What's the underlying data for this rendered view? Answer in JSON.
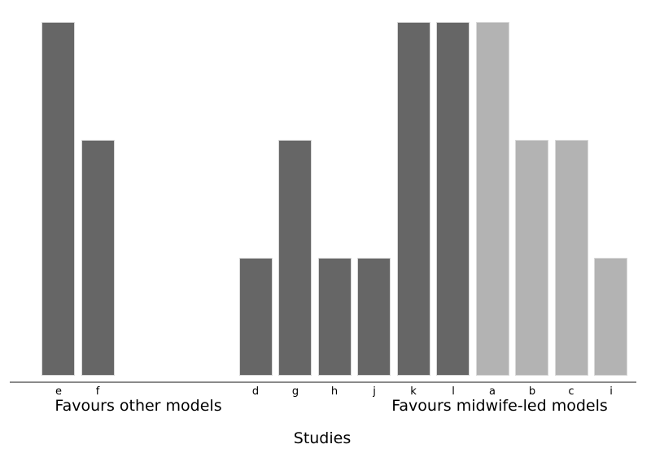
{
  "figure": {
    "background": "#ffffff",
    "axis_color": "#8a8a8a",
    "text_color": "#000000"
  },
  "chart_data": {
    "type": "bar",
    "title": "",
    "xlabel": "Studies",
    "ylabel": "",
    "ylim": [
      0,
      3
    ],
    "grid": false,
    "legend": null,
    "y_axis_shown": false,
    "annotations": {
      "left_group_label": "Favours other models",
      "right_group_label": "Favours midwife-led models"
    },
    "palette": {
      "dark": "#666666",
      "light": "#b3b3b3",
      "bar_border": "#d9d9d9"
    },
    "categories": [
      "e",
      "f",
      "d",
      "g",
      "h",
      "j",
      "k",
      "l",
      "a",
      "b",
      "c",
      "i"
    ],
    "values": [
      3,
      2,
      1,
      2,
      1,
      1,
      3,
      3,
      3,
      2,
      2,
      1
    ],
    "bars": [
      {
        "label": "e",
        "value": 3,
        "slot": 0,
        "shade": "dark"
      },
      {
        "label": "f",
        "value": 2,
        "slot": 1,
        "shade": "dark"
      },
      {
        "label": "d",
        "value": 1,
        "slot": 5,
        "shade": "dark"
      },
      {
        "label": "g",
        "value": 2,
        "slot": 6,
        "shade": "dark"
      },
      {
        "label": "h",
        "value": 1,
        "slot": 7,
        "shade": "dark"
      },
      {
        "label": "j",
        "value": 1,
        "slot": 8,
        "shade": "dark"
      },
      {
        "label": "k",
        "value": 3,
        "slot": 9,
        "shade": "dark"
      },
      {
        "label": "l",
        "value": 3,
        "slot": 10,
        "shade": "dark"
      },
      {
        "label": "a",
        "value": 3,
        "slot": 11,
        "shade": "light"
      },
      {
        "label": "b",
        "value": 2,
        "slot": 12,
        "shade": "light"
      },
      {
        "label": "c",
        "value": 2,
        "slot": 13,
        "shade": "light"
      },
      {
        "label": "i",
        "value": 1,
        "slot": 14,
        "shade": "light"
      }
    ],
    "slots_total": 15
  }
}
